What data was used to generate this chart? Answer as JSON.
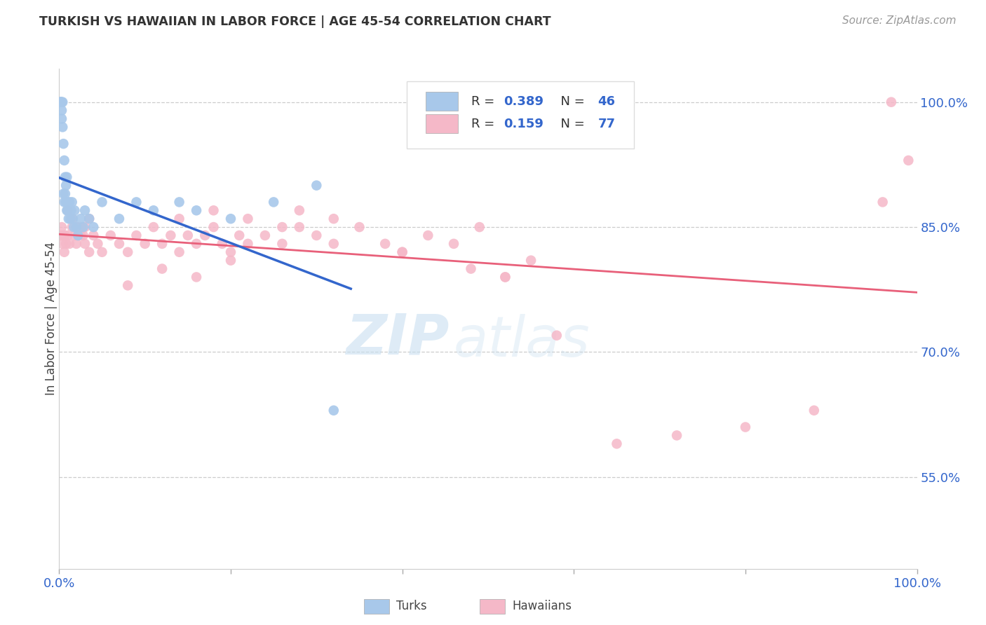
{
  "title": "TURKISH VS HAWAIIAN IN LABOR FORCE | AGE 45-54 CORRELATION CHART",
  "source": "Source: ZipAtlas.com",
  "ylabel": "In Labor Force | Age 45-54",
  "watermark_zip": "ZIP",
  "watermark_atlas": "atlas",
  "turkish_color": "#a8c8ea",
  "hawaiian_color": "#f5b8c8",
  "turkish_line_color": "#3366cc",
  "hawaiian_line_color": "#e8607a",
  "turks_x": [
    0.001,
    0.002,
    0.002,
    0.003,
    0.003,
    0.003,
    0.004,
    0.004,
    0.005,
    0.005,
    0.006,
    0.006,
    0.007,
    0.007,
    0.008,
    0.008,
    0.009,
    0.009,
    0.01,
    0.01,
    0.011,
    0.012,
    0.012,
    0.013,
    0.014,
    0.015,
    0.016,
    0.017,
    0.018,
    0.02,
    0.022,
    0.025,
    0.028,
    0.03,
    0.035,
    0.04,
    0.05,
    0.07,
    0.09,
    0.11,
    0.14,
    0.16,
    0.2,
    0.25,
    0.3,
    0.32
  ],
  "turks_y": [
    1.0,
    1.0,
    1.0,
    1.0,
    0.99,
    0.98,
    1.0,
    0.97,
    0.89,
    0.95,
    0.88,
    0.93,
    0.91,
    0.89,
    0.9,
    0.88,
    0.87,
    0.91,
    0.88,
    0.87,
    0.86,
    0.88,
    0.87,
    0.86,
    0.87,
    0.88,
    0.86,
    0.85,
    0.87,
    0.85,
    0.84,
    0.86,
    0.85,
    0.87,
    0.86,
    0.85,
    0.88,
    0.86,
    0.88,
    0.87,
    0.88,
    0.87,
    0.86,
    0.88,
    0.9,
    0.63
  ],
  "hawaiians_x": [
    0.002,
    0.003,
    0.004,
    0.005,
    0.006,
    0.007,
    0.008,
    0.01,
    0.012,
    0.015,
    0.018,
    0.02,
    0.022,
    0.025,
    0.028,
    0.03,
    0.035,
    0.04,
    0.045,
    0.05,
    0.06,
    0.07,
    0.08,
    0.09,
    0.1,
    0.11,
    0.12,
    0.13,
    0.14,
    0.15,
    0.16,
    0.17,
    0.18,
    0.19,
    0.2,
    0.21,
    0.22,
    0.24,
    0.26,
    0.28,
    0.3,
    0.32,
    0.35,
    0.38,
    0.4,
    0.43,
    0.46,
    0.49,
    0.52,
    0.55,
    0.01,
    0.015,
    0.02,
    0.025,
    0.03,
    0.035,
    0.08,
    0.12,
    0.16,
    0.2,
    0.14,
    0.18,
    0.22,
    0.26,
    0.28,
    0.32,
    0.4,
    0.48,
    0.52,
    0.58,
    0.65,
    0.72,
    0.8,
    0.88,
    0.96,
    0.99,
    0.97
  ],
  "hawaiians_y": [
    0.84,
    0.85,
    0.83,
    0.84,
    0.82,
    0.84,
    0.83,
    0.84,
    0.83,
    0.85,
    0.84,
    0.83,
    0.84,
    0.85,
    0.84,
    0.83,
    0.82,
    0.84,
    0.83,
    0.82,
    0.84,
    0.83,
    0.82,
    0.84,
    0.83,
    0.85,
    0.83,
    0.84,
    0.82,
    0.84,
    0.83,
    0.84,
    0.85,
    0.83,
    0.82,
    0.84,
    0.83,
    0.84,
    0.83,
    0.85,
    0.84,
    0.83,
    0.85,
    0.83,
    0.82,
    0.84,
    0.83,
    0.85,
    0.79,
    0.81,
    0.87,
    0.86,
    0.85,
    0.84,
    0.85,
    0.86,
    0.78,
    0.8,
    0.79,
    0.81,
    0.86,
    0.87,
    0.86,
    0.85,
    0.87,
    0.86,
    0.82,
    0.8,
    0.79,
    0.72,
    0.59,
    0.6,
    0.61,
    0.63,
    0.88,
    0.93,
    1.0
  ],
  "xlim": [
    0.0,
    1.0
  ],
  "ylim": [
    0.44,
    1.04
  ],
  "yticks": [
    0.55,
    0.7,
    0.85,
    1.0
  ],
  "ytick_labels": [
    "55.0%",
    "70.0%",
    "85.0%",
    "100.0%"
  ],
  "turkish_trendline_x": [
    0.0,
    0.34
  ],
  "hawaiian_trendline_x": [
    0.0,
    1.0
  ]
}
